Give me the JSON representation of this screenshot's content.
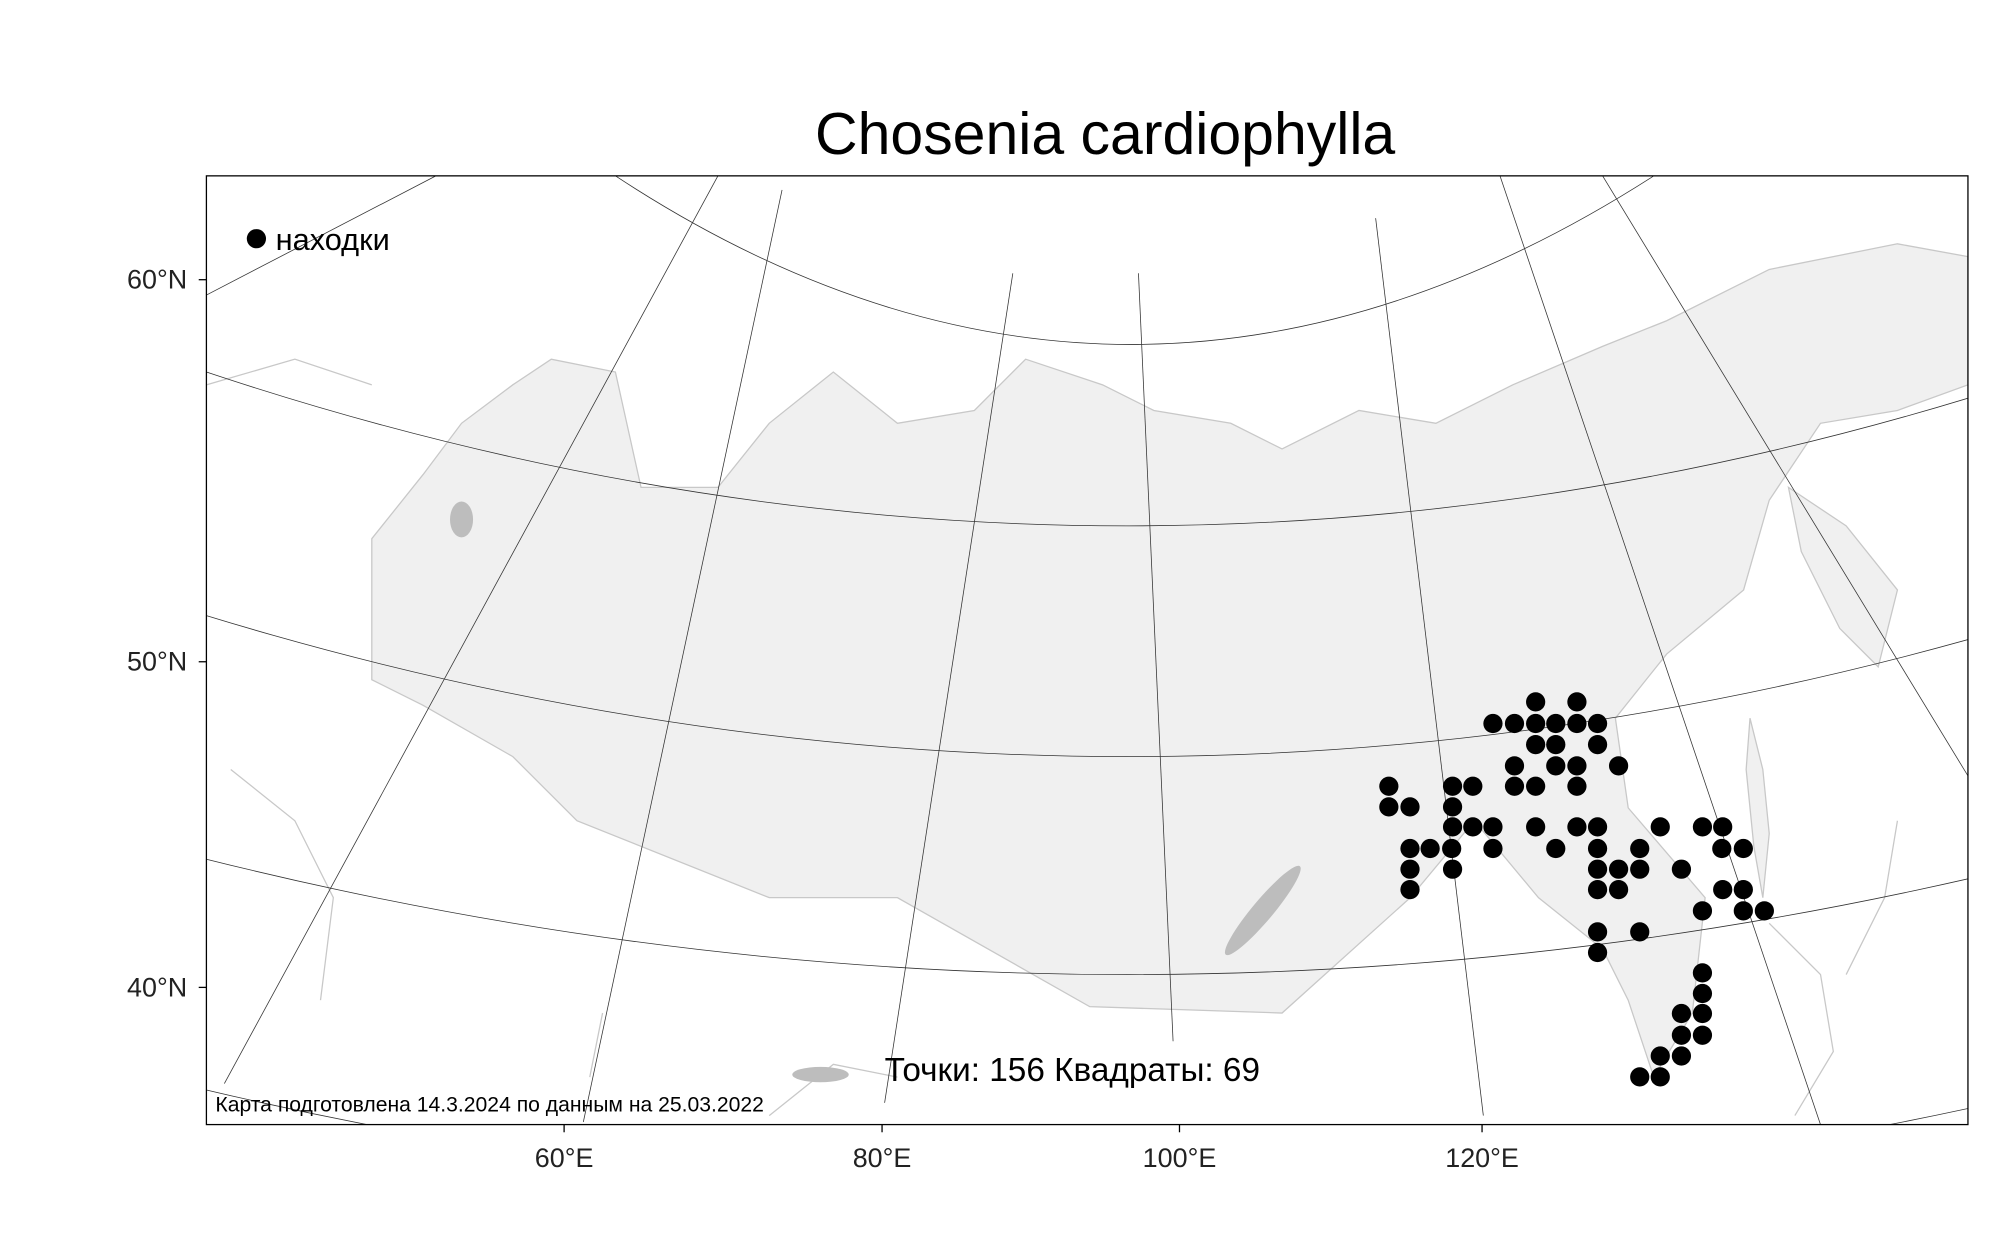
{
  "title": "Chosenia cardiophylla",
  "legend": {
    "label": "находки",
    "marker": "filled-circle",
    "color": "#000000"
  },
  "stats": "Точки: 156 Квадраты: 69",
  "footer": "Карта подготовлена 14.3.2024 по данным на 25.03.2022",
  "lat_labels": [
    "60°N",
    "50°N",
    "40°N"
  ],
  "lon_labels": [
    "60°E",
    "80°E",
    "100°E",
    "120°E"
  ],
  "colors": {
    "land": "#f0f0f0",
    "border": "#c8c8c8",
    "points": "#000000"
  }
}
